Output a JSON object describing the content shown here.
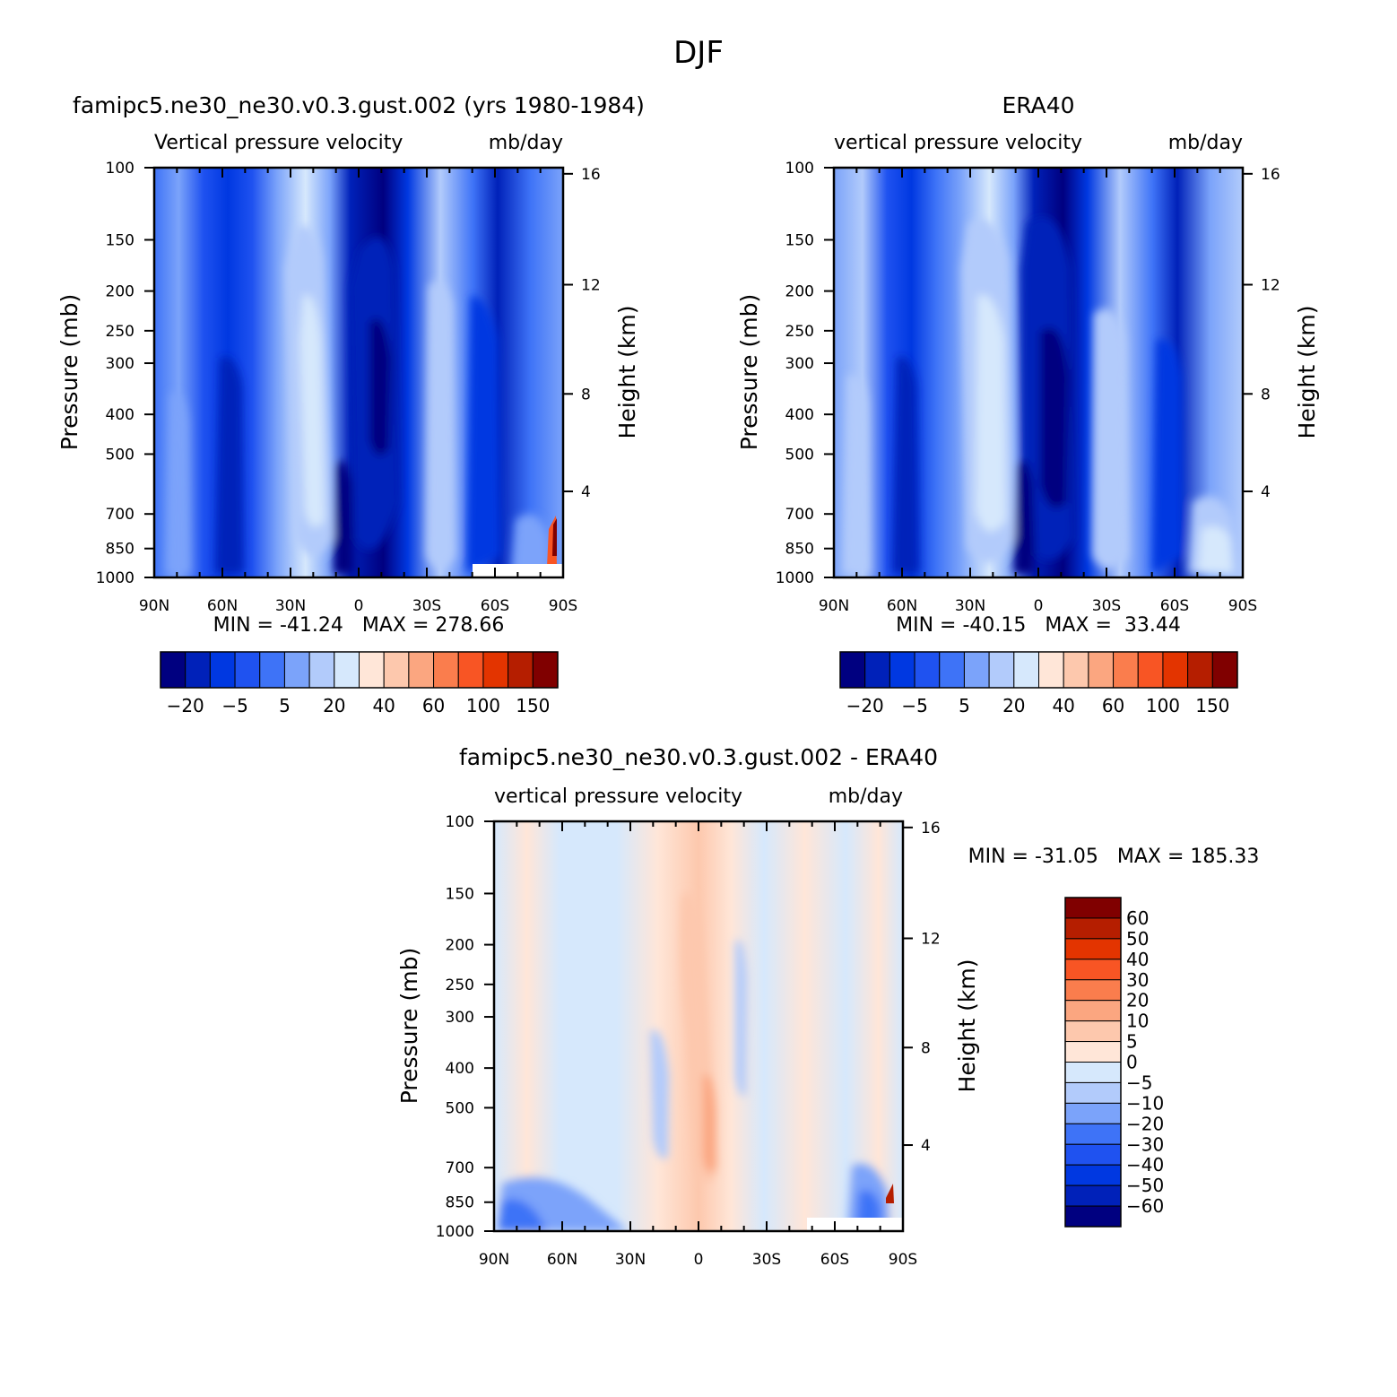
{
  "figure": {
    "title": "DJF"
  },
  "colors": {
    "left_scale": [
      "#000080",
      "#0021b9",
      "#0038e1",
      "#1f52f0",
      "#3e73f7",
      "#7ba3fa",
      "#b2cbfb",
      "#d6e8fc",
      "#ffe6d8",
      "#fdc8ad",
      "#fba680",
      "#fa7d4d",
      "#f85524",
      "#e33400",
      "#b51e00",
      "#800000"
    ],
    "diff_scale": [
      "#000080",
      "#0021b9",
      "#0038e1",
      "#1f52f0",
      "#3e73f7",
      "#7ba3fa",
      "#b2cbfb",
      "#d6e8fc",
      "#ffe6d8",
      "#fdc8ad",
      "#fba680",
      "#fa7d4d",
      "#f85524",
      "#e33400",
      "#b51e00",
      "#800000"
    ]
  },
  "chart_data": [
    {
      "type": "heatmap",
      "title": "famipc5.ne30_ne30.v0.3.gust.002 (yrs 1980-1984)",
      "subtitle_left": "Vertical pressure velocity",
      "subtitle_right": "mb/day",
      "ylabel": "Pressure (mb)",
      "ylabel_right": "Height (km)",
      "x_ticks": [
        "90N",
        "60N",
        "30N",
        "0",
        "30S",
        "60S",
        "90S"
      ],
      "y_ticks": [
        "100",
        "150",
        "200",
        "250",
        "300",
        "400",
        "500",
        "700",
        "850",
        "1000"
      ],
      "y_ticks_right": [
        "16",
        "12",
        "8",
        "4"
      ],
      "stats": "MIN = -41.24   MAX = 278.66",
      "levels": [
        -25,
        -20,
        -15,
        -10,
        -5,
        0,
        5,
        10,
        15,
        20,
        30,
        40,
        50,
        60,
        80,
        100,
        120,
        150
      ],
      "colorbar_labels": [
        "-20",
        "-5",
        "5",
        "20",
        "40",
        "60",
        "100",
        "150"
      ],
      "x_range": [
        90,
        -90
      ],
      "y_range": [
        100,
        1000
      ],
      "y_scale": "log"
    },
    {
      "type": "heatmap",
      "title": "ERA40",
      "subtitle_left": "vertical pressure velocity",
      "subtitle_right": "mb/day",
      "ylabel": "Pressure (mb)",
      "ylabel_right": "Height (km)",
      "x_ticks": [
        "90N",
        "60N",
        "30N",
        "0",
        "30S",
        "60S",
        "90S"
      ],
      "y_ticks": [
        "100",
        "150",
        "200",
        "250",
        "300",
        "400",
        "500",
        "700",
        "850",
        "1000"
      ],
      "y_ticks_right": [
        "16",
        "12",
        "8",
        "4"
      ],
      "stats": "MIN = -40.15   MAX =  33.44",
      "levels": [
        -25,
        -20,
        -15,
        -10,
        -5,
        0,
        5,
        10,
        15,
        20,
        30,
        40,
        50,
        60,
        80,
        100,
        120,
        150
      ],
      "colorbar_labels": [
        "-20",
        "-5",
        "5",
        "20",
        "40",
        "60",
        "100",
        "150"
      ],
      "x_range": [
        90,
        -90
      ],
      "y_range": [
        100,
        1000
      ],
      "y_scale": "log"
    },
    {
      "type": "heatmap",
      "title": "famipc5.ne30_ne30.v0.3.gust.002 - ERA40",
      "subtitle_left": "vertical pressure velocity",
      "subtitle_right": "mb/day",
      "ylabel": "Pressure (mb)",
      "ylabel_right": "Height (km)",
      "x_ticks": [
        "90N",
        "60N",
        "30N",
        "0",
        "30S",
        "60S",
        "90S"
      ],
      "y_ticks": [
        "100",
        "150",
        "200",
        "250",
        "300",
        "400",
        "500",
        "700",
        "850",
        "1000"
      ],
      "y_ticks_right": [
        "16",
        "12",
        "8",
        "4"
      ],
      "stats": "MIN = -31.05   MAX = 185.33",
      "levels": [
        -60,
        -50,
        -40,
        -30,
        -20,
        -10,
        -5,
        0,
        5,
        10,
        20,
        30,
        40,
        50,
        60
      ],
      "colorbar_labels": [
        "60",
        "50",
        "40",
        "30",
        "20",
        "10",
        "5",
        "0",
        "-5",
        "-10",
        "-20",
        "-30",
        "-40",
        "-50",
        "-60"
      ],
      "x_range": [
        90,
        -90
      ],
      "y_range": [
        100,
        1000
      ],
      "y_scale": "log"
    }
  ]
}
